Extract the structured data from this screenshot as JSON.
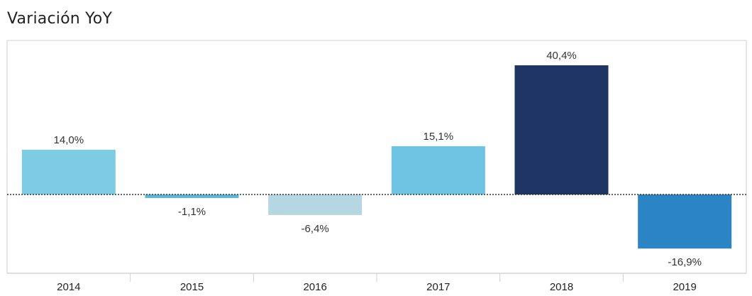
{
  "title": "Variación YoY",
  "chart_data": {
    "type": "bar",
    "title": "Variación YoY",
    "xlabel": "",
    "ylabel": "",
    "categories": [
      "2014",
      "2015",
      "2016",
      "2017",
      "2018",
      "2019"
    ],
    "values": [
      14.0,
      -1.1,
      -6.4,
      15.1,
      40.4,
      -16.9
    ],
    "labels": [
      "14,0%",
      "-1,1%",
      "-6,4%",
      "15,1%",
      "40,4%",
      "-16,9%"
    ],
    "colors": [
      "#7ecbe6",
      "#5bb6db",
      "#b4d7e1",
      "#6fc4e4",
      "#1e3463",
      "#2b84c4"
    ],
    "ylim": [
      -21,
      45
    ],
    "grid": false,
    "legend": "none"
  }
}
